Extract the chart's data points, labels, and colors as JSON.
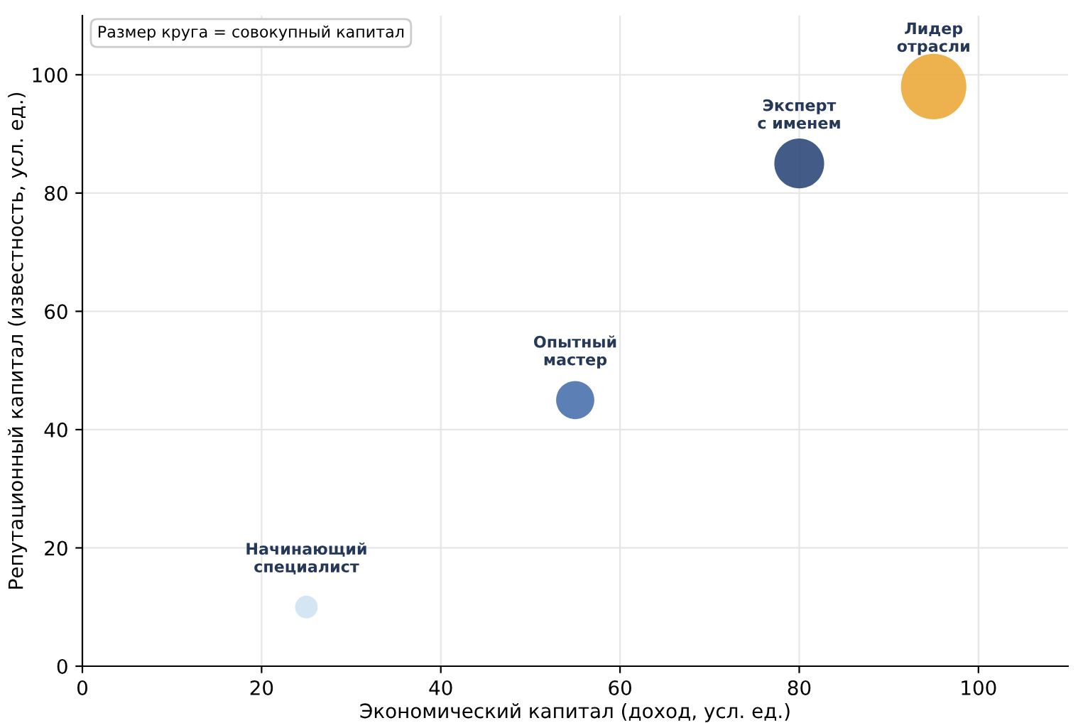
{
  "chart_data": {
    "type": "bubble",
    "xlabel": "Экономический капитал (доход, усл. ед.)",
    "ylabel": "Репутационный капитал (известность, усл. ед.)",
    "x": [
      25,
      55,
      80,
      95
    ],
    "values": [
      10,
      45,
      85,
      98
    ],
    "sizes": [
      0.12,
      0.34,
      0.58,
      1
    ],
    "colors": [
      "#cfe2f3",
      "#4a72ad",
      "#2e4a7a",
      "#eba83a"
    ],
    "xlim": [
      0,
      110
    ],
    "ylim": [
      0,
      110
    ],
    "xticks": [
      0,
      20,
      40,
      60,
      80,
      100
    ],
    "yticks": [
      0,
      20,
      40,
      60,
      80,
      100
    ],
    "grid": true,
    "annotations": [
      "Размер круга = совокупный капитал",
      {
        "text": "Начинающий\nспециалист",
        "x": 25,
        "y": 10
      },
      {
        "text": "Опытный\nмастер",
        "x": 55,
        "y": 45
      },
      {
        "text": "Эксперт\nс именем",
        "x": 80,
        "y": 85
      },
      {
        "text": "Лидер\nотрасли",
        "x": 95,
        "y": 98
      }
    ]
  }
}
